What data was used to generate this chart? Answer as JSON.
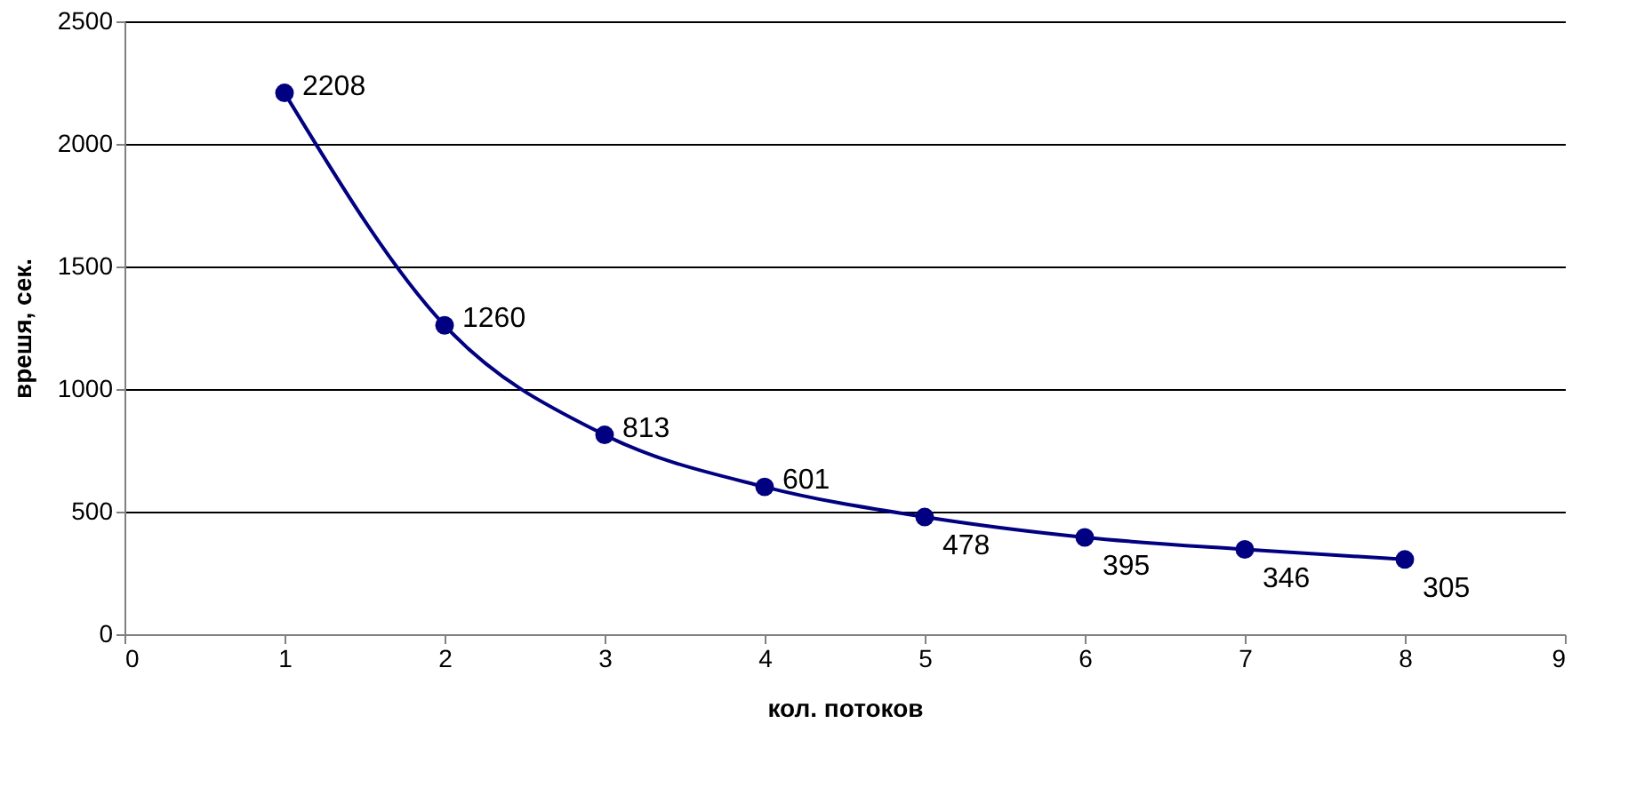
{
  "chart_data": {
    "type": "line",
    "xlabel": "кол. потоков",
    "ylabel": "врешя, сек.",
    "x": [
      1,
      2,
      3,
      4,
      5,
      6,
      7,
      8
    ],
    "series": [
      {
        "color": "#000080",
        "values": [
          2208,
          1260,
          813,
          601,
          478,
          395,
          346,
          305
        ]
      }
    ],
    "xlim": [
      0,
      9
    ],
    "xticks": [
      0,
      1,
      2,
      3,
      4,
      5,
      6,
      7,
      8,
      9
    ],
    "ylim": [
      0,
      2500
    ],
    "yticks": [
      0,
      500,
      1000,
      1500,
      2000,
      2500
    ],
    "grid": "y",
    "marker": "circle",
    "line_style": "solid",
    "data_labels": true
  }
}
